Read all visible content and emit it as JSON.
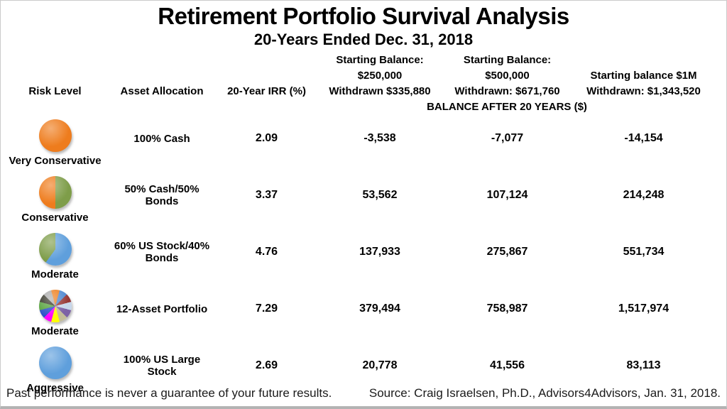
{
  "title": "Retirement Portfolio Survival Analysis",
  "subtitle": "20-Years Ended Dec. 31, 2018",
  "columns": {
    "risk": "Risk Level",
    "allocation": "Asset Allocation",
    "irr": "20-Year IRR (%)",
    "col250": {
      "line1": "Starting Balance: $250,000",
      "line2": "Withdrawn $335,880"
    },
    "col500": {
      "line1": "Starting Balance: $500,000",
      "line2": "Withdrawn: $671,760"
    },
    "col1m": {
      "line1": "Starting balance $1M",
      "line2": "Withdrawn: $1,343,520"
    }
  },
  "balance_header": "BALANCE AFTER 20 YEARS ($)",
  "rows": [
    {
      "risk": "Very Conservative",
      "icon": "solid-orange-circle",
      "allocation": "100% Cash",
      "irr": "2.09",
      "bal250": "-3,538",
      "bal500": "-7,077",
      "bal1m": "-14,154"
    },
    {
      "risk": "Conservative",
      "icon": "half-orange-half-green-pie",
      "allocation": "50% Cash/50% Bonds",
      "irr": "3.37",
      "bal250": "53,562",
      "bal500": "107,124",
      "bal1m": "214,248"
    },
    {
      "risk": "Moderate",
      "icon": "blue-green-60-40-pie",
      "allocation": "60% US Stock/40% Bonds",
      "irr": "4.76",
      "bal250": "137,933",
      "bal500": "275,867",
      "bal1m": "551,734"
    },
    {
      "risk": "Moderate",
      "icon": "twelve-slice-multicolor-pie",
      "allocation": "12-Asset Portfolio",
      "irr": "7.29",
      "bal250": "379,494",
      "bal500": "758,987",
      "bal1m": "1,517,974"
    },
    {
      "risk": "Aggressive",
      "icon": "solid-blue-circle",
      "allocation": "100% US Large Stock",
      "irr": "2.69",
      "bal250": "20,778",
      "bal500": "41,556",
      "bal1m": "83,113"
    }
  ],
  "footer": {
    "disclaimer": "Past performance is never a guarantee of your future results.",
    "source": "Source:  Craig Israelsen, Ph.D., Advisors4Advisors, Jan. 31, 2018."
  },
  "colors": {
    "orange": "#EE7C1D",
    "olive_green": "#7E9D49",
    "blue": "#5F9FDC",
    "pie12": [
      "#ED7D1B",
      "#4E87D0",
      "#963634",
      "#C7D7EC",
      "#7D62A6",
      "#C4BD97",
      "#FFFF00",
      "#FF00FF",
      "#2B50C8",
      "#56A23C",
      "#2E2E20",
      "#A8A8A8"
    ]
  },
  "chart_data": {
    "type": "table",
    "title": "Retirement Portfolio Survival Analysis",
    "subtitle": "20-Years Ended Dec. 31, 2018",
    "group_header": "BALANCE AFTER 20 YEARS ($)",
    "columns": [
      "Risk Level",
      "Asset Allocation",
      "20-Year IRR (%)",
      "Starting Balance: $250,000 / Withdrawn $335,880",
      "Starting Balance: $500,000 / Withdrawn: $671,760",
      "Starting balance $1M / Withdrawn: $1,343,520"
    ],
    "rows": [
      [
        "Very Conservative",
        "100% Cash",
        2.09,
        -3538,
        -7077,
        -14154
      ],
      [
        "Conservative",
        "50% Cash/50% Bonds",
        3.37,
        53562,
        107124,
        214248
      ],
      [
        "Moderate",
        "60% US Stock/40% Bonds",
        4.76,
        137933,
        275867,
        551734
      ],
      [
        "Moderate",
        "12-Asset Portfolio",
        7.29,
        379494,
        758987,
        1517974
      ],
      [
        "Aggressive",
        "100% US Large Stock",
        2.69,
        20778,
        41556,
        83113
      ]
    ],
    "footnotes": [
      "Past performance is never a guarantee of your future results.",
      "Source:  Craig Israelsen, Ph.D., Advisors4Advisors, Jan. 31, 2018."
    ]
  }
}
